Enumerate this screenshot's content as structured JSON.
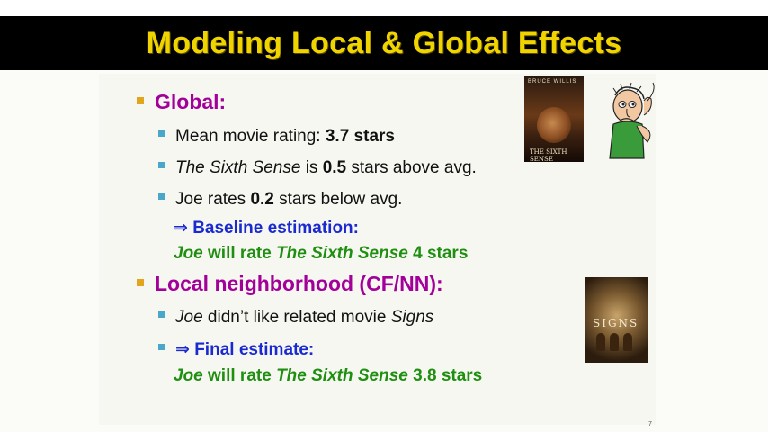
{
  "slide": {
    "title": "Modeling Local & Global Effects",
    "page_number": "7",
    "global_heading": "Global:",
    "mean_label": "Mean movie rating: ",
    "mean_value": "3.7 stars",
    "sixth_sense_title": "The Sixth Sense",
    "sixth_sense_mid": " is ",
    "sixth_sense_value": "0.5",
    "sixth_sense_tail": " stars above avg.",
    "joe_prefix": "Joe rates ",
    "joe_value": "0.2",
    "joe_tail": " stars below avg.",
    "implies_symbol": "⇒",
    "baseline_label": "Baseline estimation:",
    "baseline_joe": "Joe",
    "baseline_mid": " will rate ",
    "baseline_movie": "The Sixth Sense",
    "baseline_value": " 4 stars",
    "local_heading": "Local neighborhood (CF/NN):",
    "related_joe": "Joe",
    "related_text": " didn’t like related movie ",
    "related_movie": "Signs",
    "final_label": "Final estimate:",
    "final_joe": "Joe",
    "final_mid": " will rate ",
    "final_movie": "The Sixth Sense",
    "final_value": " 3.8 stars"
  },
  "images": {
    "poster_sixth_sense_top": "BRUCE WILLIS",
    "poster_sixth_sense_bottom": "THE SIXTH SENSE",
    "poster_signs_text": "SIGNS",
    "cartoon": "confused-man"
  },
  "colors": {
    "title": "#f0d400",
    "heading": "#a3009a",
    "blue": "#1a2ad0",
    "green": "#1f8f12",
    "bullet1": "#e3a51c",
    "bullet2": "#4aa7c9"
  }
}
